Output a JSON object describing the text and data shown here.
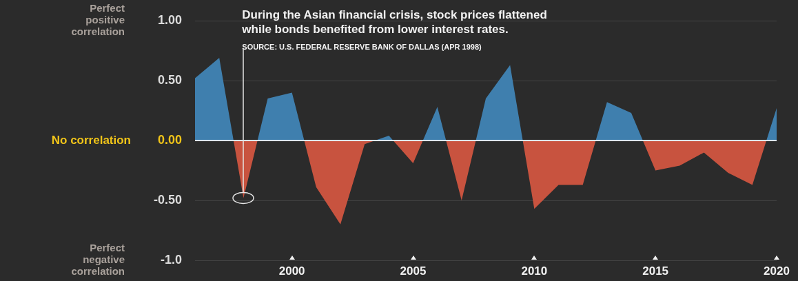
{
  "chart_data": {
    "type": "area",
    "x": [
      1996,
      1997,
      1998,
      1999,
      2000,
      2001,
      2002,
      2003,
      2004,
      2005,
      2006,
      2007,
      2008,
      2009,
      2010,
      2011,
      2012,
      2013,
      2014,
      2015,
      2016,
      2017,
      2018,
      2019,
      2020
    ],
    "series": [
      {
        "values": [
          0.52,
          0.69,
          -0.48,
          0.35,
          0.4,
          -0.39,
          -0.7,
          -0.03,
          0.04,
          -0.19,
          0.28,
          -0.5,
          0.35,
          0.63,
          -0.57,
          -0.37,
          -0.37,
          0.32,
          0.23,
          -0.25,
          -0.21,
          -0.1,
          -0.27,
          -0.37,
          0.27
        ],
        "colors": [
          "#3f7fae",
          "#3f7fae",
          "#c8533f",
          "#3f7fae",
          "#3f7fae",
          "#c8533f",
          "#c8533f",
          "#c8533f",
          "#3f7fae",
          "#c8533f",
          "#3f7fae",
          "#c8533f",
          "#3f7fae",
          "#3f7fae",
          "#c8533f",
          "#c8533f",
          "#c8533f",
          "#3f7fae",
          "#3f7fae",
          "#c8533f",
          "#c8533f",
          "#c8533f",
          "#c8533f",
          "#c8533f",
          "#3f7fae"
        ]
      }
    ],
    "xlim": [
      1996,
      2020
    ],
    "xticks": [
      2000,
      2005,
      2010,
      2015,
      2020
    ],
    "ylim": [
      -1,
      1
    ],
    "yticks": [
      {
        "value": 1,
        "label": "1.00"
      },
      {
        "value": 0.5,
        "label": "0.50"
      },
      {
        "value": 0,
        "label": "0.00"
      },
      {
        "value": -0.5,
        "label": "-0.50"
      },
      {
        "value": -1,
        "label": "-1.0"
      }
    ],
    "grid": "y",
    "marker": "none",
    "ref_lines": [
      {
        "axis": "y",
        "value": 0,
        "color": "#dce6ee"
      }
    ],
    "annotations": [
      {
        "text": "During the Asian financial crisis, stock prices flattened\nwhile bonds benefited from lower interest rates.",
        "x": 1998,
        "y": -0.48
      },
      "SOURCE: U.S. FEDERAL RESERVE BANK OF DALLAS (APR 1998)",
      "Perfect\npositive\ncorrelation",
      "No correlation",
      "Perfect\nnegative\ncorrelation"
    ]
  }
}
